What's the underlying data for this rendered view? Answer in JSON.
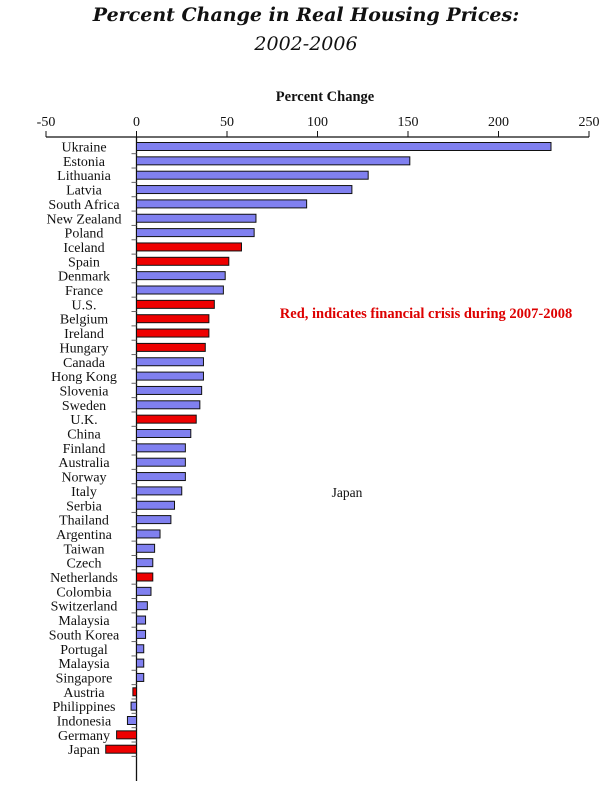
{
  "chart_data": {
    "type": "bar",
    "orientation": "horizontal",
    "title": "Percent Change in Real Housing Prices:",
    "subtitle": "2002-2006",
    "xlabel": "Percent Change",
    "ylabel": "",
    "xlim": [
      -50,
      250
    ],
    "xticks": [
      -50,
      0,
      50,
      100,
      150,
      200,
      250
    ],
    "xtick_labels": [
      "-50",
      "0",
      "50",
      "100",
      "150",
      "200",
      "250"
    ],
    "axis_position": "top",
    "grid": false,
    "annotation": "Red, indicates financial crisis during 2007-2008",
    "stray_label": "Japan",
    "colors": {
      "normal": "#8080f0",
      "crisis": "#ee0000",
      "annotation": "#dd0000"
    },
    "categories": [
      "Ukraine",
      "Estonia",
      "Lithuania",
      "Latvia",
      "South Africa",
      "New Zealand",
      "Poland",
      "Iceland",
      "Spain",
      "Denmark",
      "France",
      "U.S.",
      "Belgium",
      "Ireland",
      "Hungary",
      "Canada",
      "Hong Kong",
      "Slovenia",
      "Sweden",
      "U.K.",
      "China",
      "Finland",
      "Australia",
      "Norway",
      "Italy",
      "Serbia",
      "Thailand",
      "Argentina",
      "Taiwan",
      "Czech",
      "Netherlands",
      "Colombia",
      "Switzerland",
      "Malaysia",
      "South Korea",
      "Portugal",
      "Malaysia",
      "Singapore",
      "Austria",
      "Philippines",
      "Indonesia",
      "Germany",
      "Japan"
    ],
    "values": [
      229,
      151,
      128,
      119,
      94,
      66,
      65,
      58,
      51,
      49,
      48,
      43,
      40,
      40,
      38,
      37,
      37,
      36,
      35,
      33,
      30,
      27,
      27,
      27,
      25,
      21,
      19,
      13,
      10,
      9,
      9,
      8,
      6,
      5,
      5,
      4,
      4,
      4,
      -2,
      -3,
      -5,
      -11,
      -17
    ],
    "crisis": [
      false,
      false,
      false,
      false,
      false,
      false,
      false,
      true,
      true,
      false,
      false,
      true,
      true,
      true,
      true,
      false,
      false,
      false,
      false,
      true,
      false,
      false,
      false,
      false,
      false,
      false,
      false,
      false,
      false,
      false,
      true,
      false,
      false,
      false,
      false,
      false,
      false,
      false,
      true,
      false,
      false,
      true,
      true
    ]
  }
}
